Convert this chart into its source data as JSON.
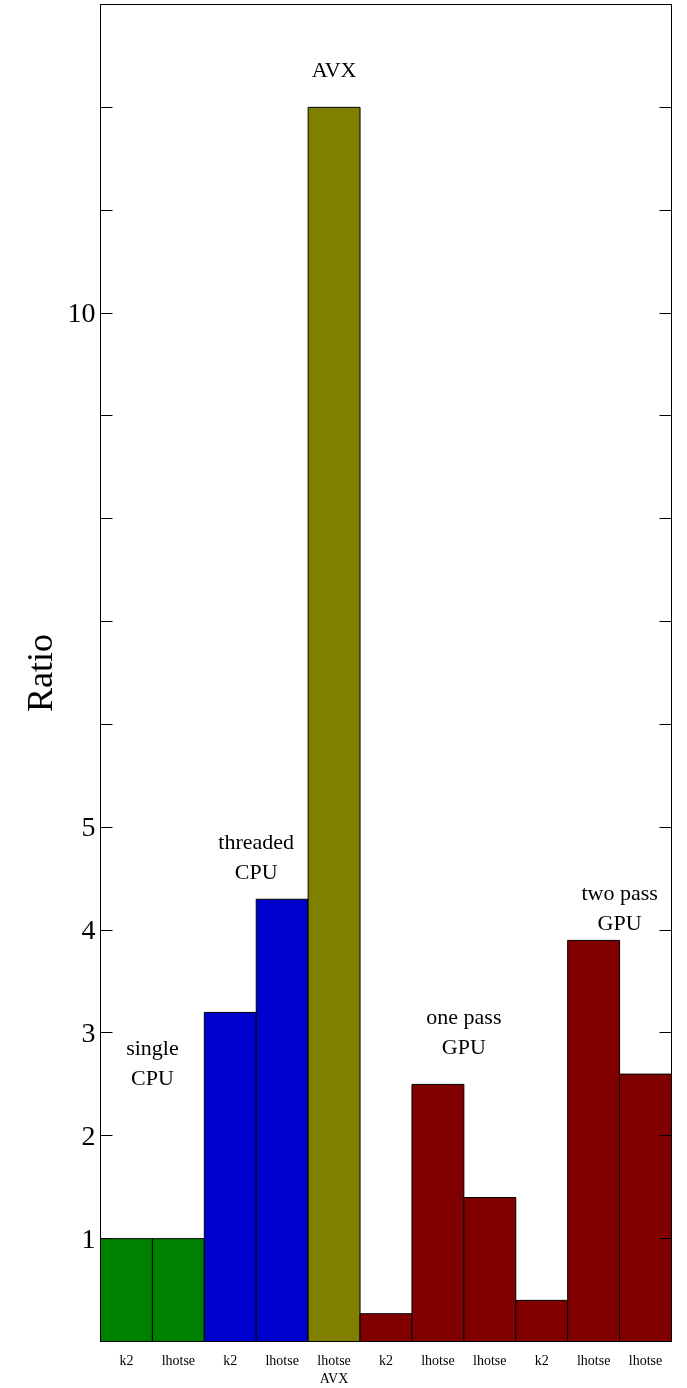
{
  "chart_data": {
    "type": "bar",
    "ylabel": "Ratio",
    "categories": [
      "k2",
      "lhotse",
      "k2",
      "lhotse",
      "lhotse\nAVX",
      "k2",
      "lhotse",
      "lhotse",
      "k2",
      "lhotse",
      "lhotse"
    ],
    "values": [
      1.0,
      1.0,
      3.2,
      4.3,
      12.0,
      0.27,
      2.5,
      1.4,
      0.4,
      3.9,
      2.6
    ],
    "colors": [
      "#008000",
      "#008000",
      "#0000cc",
      "#0000cc",
      "#808000",
      "#800000",
      "#800000",
      "#800000",
      "#800000",
      "#800000",
      "#800000"
    ],
    "ylim": [
      0,
      13
    ],
    "yticks": [
      1,
      2,
      3,
      4,
      5,
      {
        "value": 6,
        "label": null
      },
      {
        "value": 7,
        "label": null
      },
      {
        "value": 8,
        "label": null
      },
      {
        "value": 9,
        "label": null
      },
      10,
      {
        "value": 11,
        "label": null
      },
      {
        "value": 12,
        "label": null
      }
    ],
    "annotations": [
      "single\nCPU",
      "threaded\nCPU",
      "AVX",
      "one pass\nGPU",
      "two pass\nGPU"
    ],
    "grid": false
  }
}
